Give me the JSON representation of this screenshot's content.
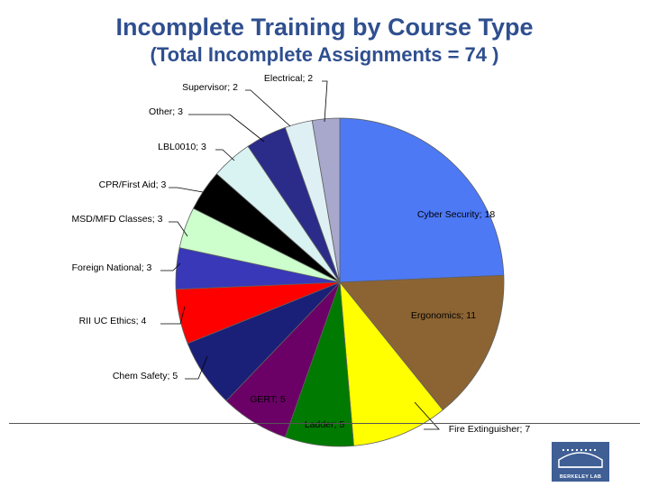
{
  "title": "Incomplete Training by Course Type",
  "subtitle": "(Total Incomplete Assignments = 74 )",
  "logo": {
    "text": "BERKELEY LAB"
  },
  "chart_data": {
    "type": "pie",
    "title": "Incomplete Training by Course Type",
    "subtitle": "(Total Incomplete Assignments = 74 )",
    "total": 74,
    "start_angle_deg": 0,
    "direction": "clockwise",
    "slices": [
      {
        "label": "Cyber Security; 18",
        "name": "Cyber Security",
        "value": 18,
        "color": "#4d79f5"
      },
      {
        "label": "Ergonomics; 11",
        "name": "Ergonomics",
        "value": 11,
        "color": "#8c6433"
      },
      {
        "label": "Fire Extinguisher; 7",
        "name": "Fire Extinguisher",
        "value": 7,
        "color": "#ffff00"
      },
      {
        "label": "Ladder; 5",
        "name": "Ladder",
        "value": 5,
        "color": "#007a00"
      },
      {
        "label": "GERT; 5",
        "name": "GERT",
        "value": 5,
        "color": "#6b0066"
      },
      {
        "label": "Chem Safety; 5",
        "name": "Chem Safety",
        "value": 5,
        "color": "#1a1f78"
      },
      {
        "label": "RII UC Ethics; 4",
        "name": "RII UC Ethics",
        "value": 4,
        "color": "#ff0000"
      },
      {
        "label": "Foreign National; 3",
        "name": "Foreign National",
        "value": 3,
        "color": "#3838b8"
      },
      {
        "label": "MSD/MFD Classes; 3",
        "name": "MSD/MFD Classes",
        "value": 3,
        "color": "#ccffcc"
      },
      {
        "label": "CPR/First Aid; 3",
        "name": "CPR/First Aid",
        "value": 3,
        "color": "#000000"
      },
      {
        "label": "LBL0010; 3",
        "name": "LBL0010",
        "value": 3,
        "color": "#d9f2f2"
      },
      {
        "label": "Other; 3",
        "name": "Other",
        "value": 3,
        "color": "#2b2b8a"
      },
      {
        "label": "Supervisor; 2",
        "name": "Supervisor",
        "value": 2,
        "color": "#dff0f5"
      },
      {
        "label": "Electrical; 2",
        "name": "Electrical",
        "value": 2,
        "color": "#a8a8cc"
      }
    ]
  }
}
